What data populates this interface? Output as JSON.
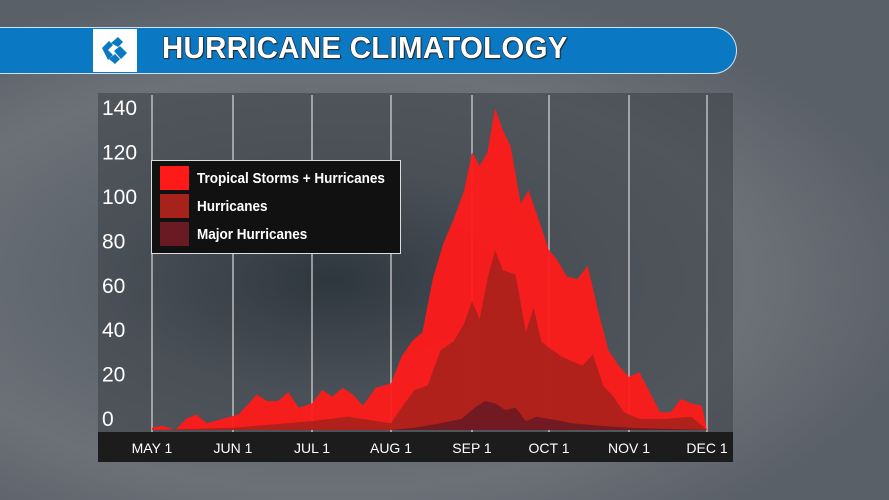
{
  "header": {
    "title": "HURRICANE CLIMATOLOGY",
    "logo": "station-logo"
  },
  "colors": {
    "header_bar": "#0a78c2",
    "ts_hurricanes": "#ff1a1a",
    "hurricanes": "#a8221c",
    "major_hurricanes": "#6a1a22"
  },
  "chart_data": {
    "type": "area",
    "title": "",
    "xlabel": "",
    "ylabel": "",
    "ylim": [
      0,
      140
    ],
    "yticks": [
      "0",
      "20",
      "40",
      "60",
      "80",
      "100",
      "120",
      "140"
    ],
    "xticks": [
      "MAY 1",
      "JUN 1",
      "JUL 1",
      "AUG 1",
      "SEP 1",
      "OCT 1",
      "NOV 1",
      "DEC 1"
    ],
    "grid": "vertical",
    "legend_position": "top-left",
    "series": [
      {
        "name": "Tropical Storms + Hurricanes",
        "color": "#ff1a1a",
        "points": [
          [
            "05-01",
            1
          ],
          [
            "05-05",
            2
          ],
          [
            "05-10",
            0
          ],
          [
            "05-14",
            5
          ],
          [
            "05-18",
            7
          ],
          [
            "05-22",
            3
          ],
          [
            "05-28",
            5
          ],
          [
            "06-03",
            7
          ],
          [
            "06-07",
            12
          ],
          [
            "06-10",
            16
          ],
          [
            "06-14",
            13
          ],
          [
            "06-18",
            13
          ],
          [
            "06-22",
            17
          ],
          [
            "06-26",
            10
          ],
          [
            "07-01",
            12
          ],
          [
            "07-05",
            18
          ],
          [
            "07-09",
            15
          ],
          [
            "07-13",
            19
          ],
          [
            "07-17",
            16
          ],
          [
            "07-21",
            11
          ],
          [
            "07-26",
            19
          ],
          [
            "08-01",
            21
          ],
          [
            "08-05",
            33
          ],
          [
            "08-09",
            40
          ],
          [
            "08-13",
            44
          ],
          [
            "08-17",
            68
          ],
          [
            "08-21",
            84
          ],
          [
            "08-25",
            95
          ],
          [
            "08-29",
            108
          ],
          [
            "09-01",
            125
          ],
          [
            "09-04",
            119
          ],
          [
            "09-07",
            125
          ],
          [
            "09-10",
            145
          ],
          [
            "09-13",
            135
          ],
          [
            "09-16",
            128
          ],
          [
            "09-20",
            102
          ],
          [
            "09-23",
            108
          ],
          [
            "09-26",
            98
          ],
          [
            "10-01",
            81
          ],
          [
            "10-04",
            77
          ],
          [
            "10-08",
            69
          ],
          [
            "10-12",
            68
          ],
          [
            "10-16",
            74
          ],
          [
            "10-20",
            54
          ],
          [
            "10-24",
            36
          ],
          [
            "10-28",
            29
          ],
          [
            "11-01",
            24
          ],
          [
            "11-05",
            26
          ],
          [
            "11-09",
            17
          ],
          [
            "11-13",
            8
          ],
          [
            "11-17",
            8
          ],
          [
            "11-21",
            14
          ],
          [
            "11-25",
            12
          ],
          [
            "11-29",
            11
          ],
          [
            "12-01",
            0
          ]
        ]
      },
      {
        "name": "Hurricanes",
        "color": "#a8221c",
        "points": [
          [
            "05-01",
            0
          ],
          [
            "06-01",
            1
          ],
          [
            "07-01",
            4
          ],
          [
            "07-15",
            6
          ],
          [
            "08-01",
            3
          ],
          [
            "08-05",
            10
          ],
          [
            "08-10",
            18
          ],
          [
            "08-15",
            20
          ],
          [
            "08-20",
            36
          ],
          [
            "08-25",
            40
          ],
          [
            "08-29",
            48
          ],
          [
            "09-01",
            58
          ],
          [
            "09-04",
            50
          ],
          [
            "09-07",
            68
          ],
          [
            "09-10",
            81
          ],
          [
            "09-13",
            72
          ],
          [
            "09-18",
            70
          ],
          [
            "09-22",
            44
          ],
          [
            "09-25",
            55
          ],
          [
            "09-28",
            40
          ],
          [
            "10-01",
            37
          ],
          [
            "10-06",
            33
          ],
          [
            "10-10",
            31
          ],
          [
            "10-14",
            29
          ],
          [
            "10-18",
            34
          ],
          [
            "10-22",
            20
          ],
          [
            "10-26",
            15
          ],
          [
            "10-30",
            8
          ],
          [
            "11-05",
            5
          ],
          [
            "11-15",
            5
          ],
          [
            "11-25",
            6
          ],
          [
            "12-01",
            0
          ]
        ]
      },
      {
        "name": "Major Hurricanes",
        "color": "#6a1a22",
        "points": [
          [
            "05-01",
            0
          ],
          [
            "07-01",
            0
          ],
          [
            "08-01",
            0
          ],
          [
            "08-10",
            1
          ],
          [
            "08-20",
            3
          ],
          [
            "08-28",
            5
          ],
          [
            "09-02",
            10
          ],
          [
            "09-06",
            13
          ],
          [
            "09-10",
            12
          ],
          [
            "09-14",
            9
          ],
          [
            "09-18",
            10
          ],
          [
            "09-22",
            4
          ],
          [
            "09-26",
            6
          ],
          [
            "10-01",
            5
          ],
          [
            "10-10",
            3
          ],
          [
            "10-20",
            2
          ],
          [
            "11-01",
            1
          ],
          [
            "12-01",
            0
          ]
        ]
      }
    ]
  }
}
